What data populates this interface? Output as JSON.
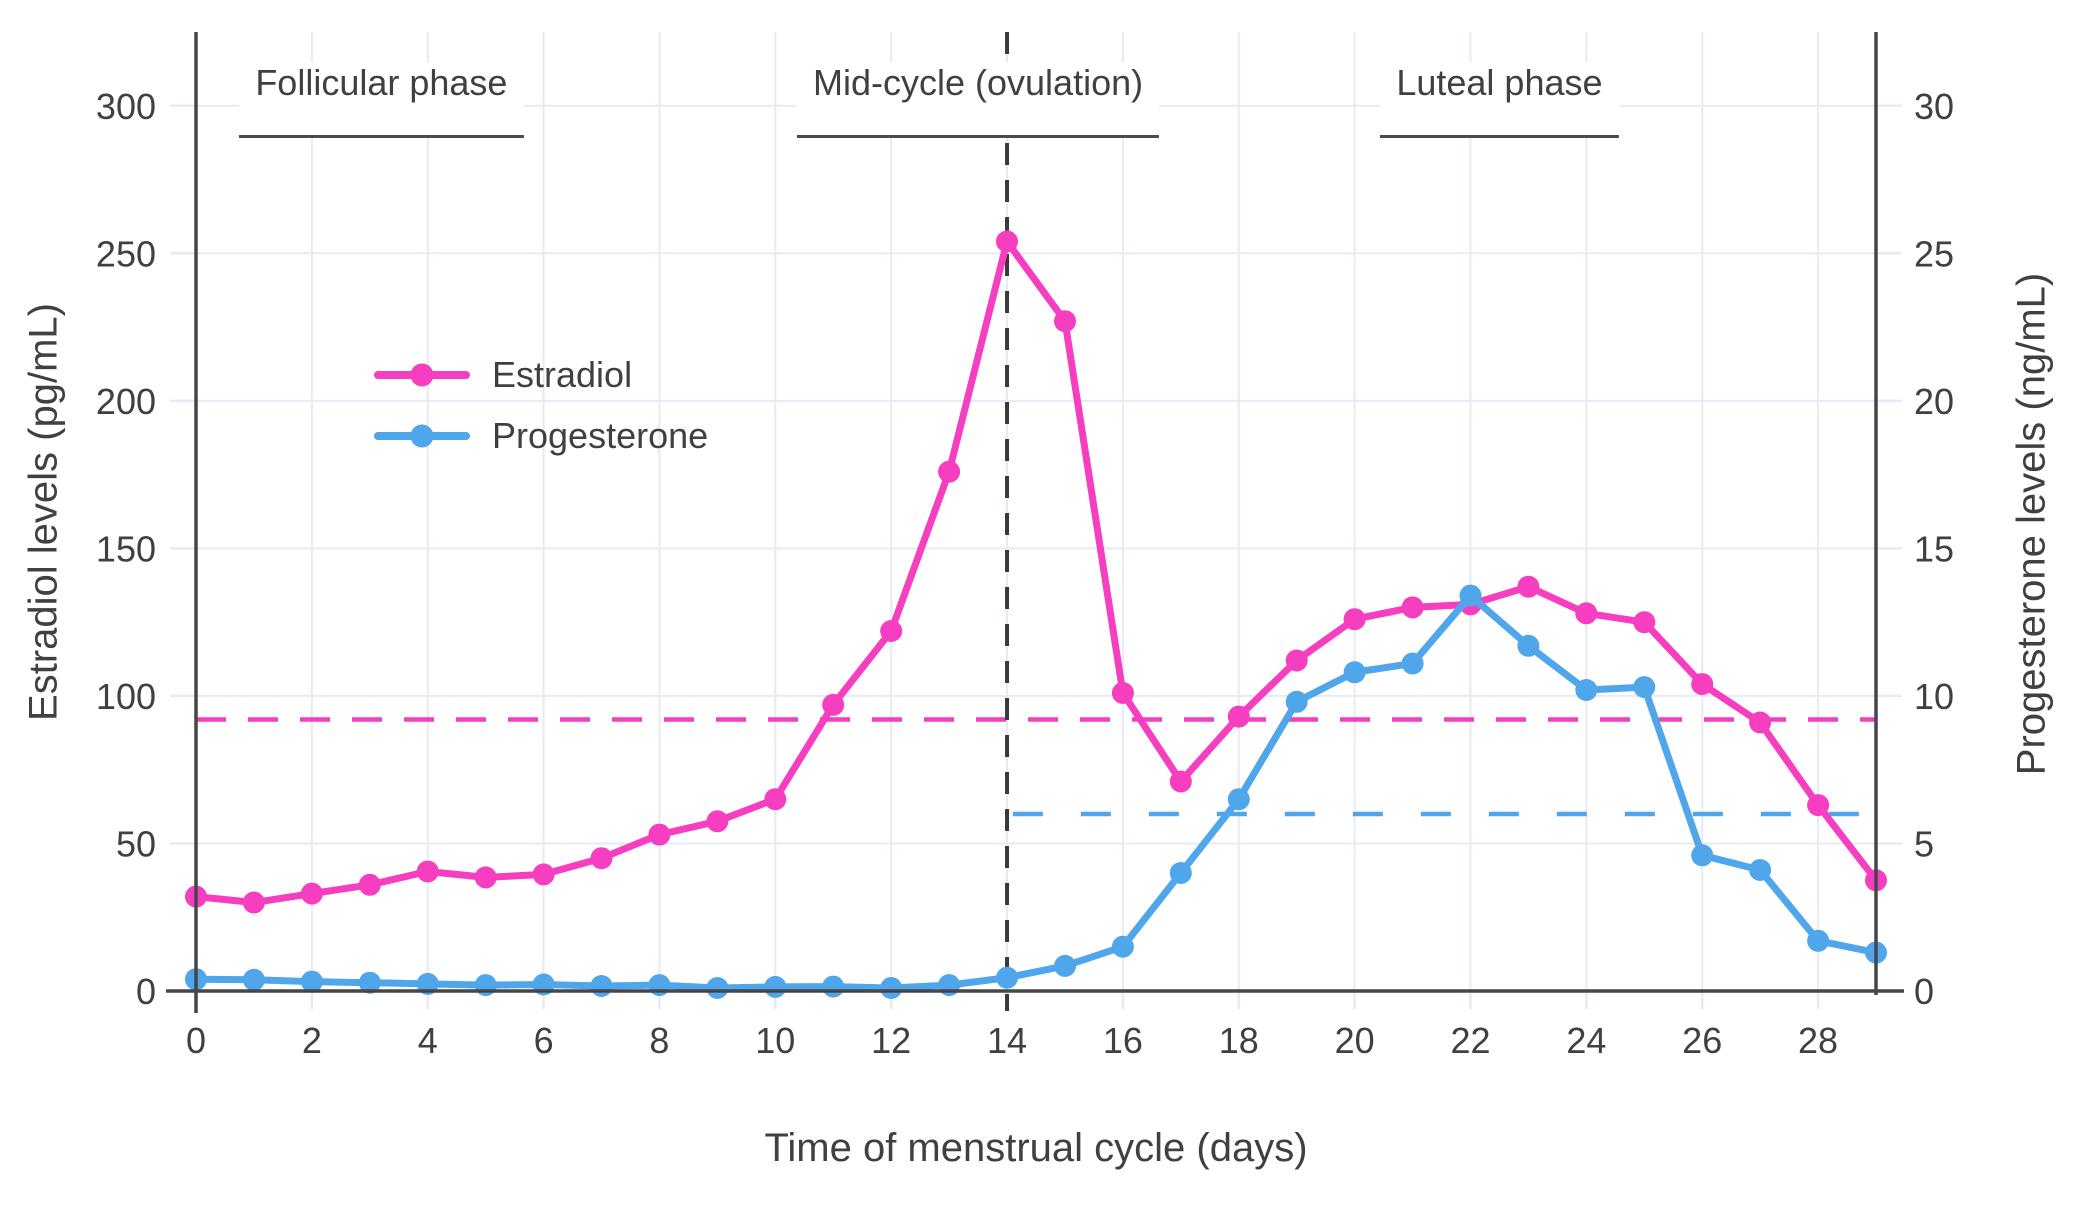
{
  "chart_data": {
    "type": "line",
    "xlabel": "Time of menstrual cycle (days)",
    "ylabel_left": "Estradiol levels (pg/mL)",
    "ylabel_right": "Progesterone levels (ng/mL)",
    "x": [
      0,
      1,
      2,
      3,
      4,
      5,
      6,
      7,
      8,
      9,
      10,
      11,
      12,
      13,
      14,
      15,
      16,
      17,
      18,
      19,
      20,
      21,
      22,
      23,
      24,
      25,
      26,
      27,
      28,
      29
    ],
    "x_range": [
      0,
      29
    ],
    "x_ticks": [
      0,
      2,
      4,
      6,
      8,
      10,
      12,
      14,
      16,
      18,
      20,
      22,
      24,
      26,
      28
    ],
    "left_axis": {
      "ticks": [
        0,
        50,
        100,
        150,
        200,
        250,
        300
      ],
      "range": [
        0,
        325
      ],
      "unit": "pg/mL"
    },
    "right_axis": {
      "ticks": [
        0,
        5,
        10,
        15,
        20,
        25,
        30
      ],
      "range": [
        0,
        32.5
      ],
      "unit": "ng/mL"
    },
    "grid": true,
    "series": [
      {
        "name": "Estradiol",
        "axis": "left",
        "unit": "pg/mL",
        "color": "#f53ec0",
        "values": [
          32,
          30,
          33,
          36,
          40.5,
          38.5,
          39.5,
          45,
          53,
          57.5,
          65,
          97,
          122,
          176,
          254,
          227,
          101,
          71,
          93,
          112,
          126,
          130,
          131,
          137,
          128,
          125,
          104,
          91,
          63,
          37.5
        ]
      },
      {
        "name": "Progesterone",
        "axis": "right",
        "unit": "ng/mL",
        "color": "#4fa6ea",
        "values": [
          0.4,
          0.38,
          0.32,
          0.28,
          0.24,
          0.2,
          0.22,
          0.17,
          0.2,
          0.1,
          0.14,
          0.15,
          0.1,
          0.2,
          0.45,
          0.85,
          1.5,
          4.0,
          6.5,
          9.8,
          10.8,
          11.1,
          13.4,
          11.7,
          10.2,
          10.3,
          4.6,
          4.1,
          1.7,
          1.3
        ]
      }
    ],
    "reference_lines": [
      {
        "orientation": "horizontal",
        "axis": "left",
        "value": 92,
        "color": "#f53ec0",
        "style": "dashed"
      },
      {
        "orientation": "horizontal",
        "axis": "right",
        "value": 6,
        "from_day": 14.1,
        "color": "#4fa6ea",
        "style": "dashed"
      },
      {
        "orientation": "vertical",
        "day": 14,
        "color": "#3a3a3a",
        "style": "dashed"
      }
    ],
    "annotations": [
      {
        "label": "Follicular phase",
        "center_day": 3.2
      },
      {
        "label": "Mid-cycle (ovulation)",
        "center_day": 13.5
      },
      {
        "label": "Luteal phase",
        "center_day": 22.5
      }
    ],
    "legend_position": "upper-left-inside",
    "colors": {
      "grid": "#e7eaf5",
      "axis": "#46464a",
      "text": "#3f3f44",
      "background": "#ffffff"
    }
  }
}
